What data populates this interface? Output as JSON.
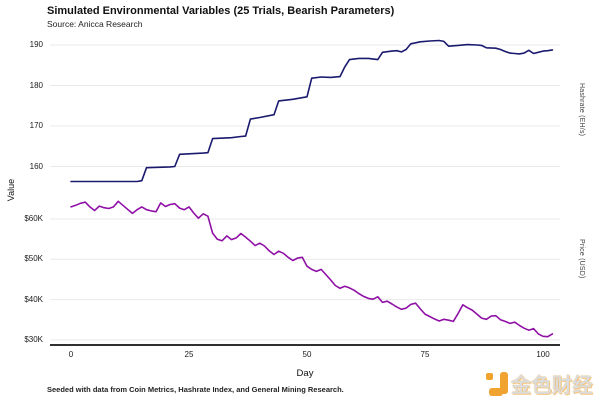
{
  "title": "Simulated Environmental Variables (25 Trials, Bearish Parameters)",
  "subtitle": "Source: Anicca Research",
  "caption": "Seeded with data from Coin Metrics, Hashrate Index, and General Mining Research.",
  "watermark": {
    "text": "金色财经",
    "accent_color": "#f0a32f"
  },
  "chart_data": {
    "type": "line",
    "title": "Simulated Environmental Variables (25 Trials, Bearish Parameters)",
    "xlabel": "Day",
    "ylabel": "Value",
    "grid": true,
    "legend_position": "right-axis-labels",
    "x_range": [
      0,
      102
    ],
    "x_ticks": [
      {
        "label": "0",
        "value": 0
      },
      {
        "label": "25",
        "value": 25
      },
      {
        "label": "50",
        "value": 50
      },
      {
        "label": "75",
        "value": 75
      },
      {
        "label": "100",
        "value": 100
      }
    ],
    "left_ticks": [
      {
        "label": "190",
        "axis": "hashrate",
        "value": 190
      },
      {
        "label": "180",
        "axis": "hashrate",
        "value": 180
      },
      {
        "label": "170",
        "axis": "hashrate",
        "value": 170
      },
      {
        "label": "160",
        "axis": "hashrate",
        "value": 160
      },
      {
        "label": "$60K",
        "axis": "price",
        "value": 60
      },
      {
        "label": "$50K",
        "axis": "price",
        "value": 50
      },
      {
        "label": "$40K",
        "axis": "price",
        "value": 40
      },
      {
        "label": "$30K",
        "axis": "price",
        "value": 30
      }
    ],
    "series": [
      {
        "key": "hashrate",
        "name": "Hashrate (EH/s)",
        "color": "#1a1a6e",
        "ylim": [
          156,
          191
        ],
        "points": [
          [
            0,
            156.3
          ],
          [
            14,
            156.3
          ],
          [
            15,
            156.5
          ],
          [
            16,
            159.7
          ],
          [
            21,
            159.9
          ],
          [
            22,
            160.0
          ],
          [
            23,
            163.0
          ],
          [
            28,
            163.3
          ],
          [
            29,
            163.4
          ],
          [
            30,
            166.9
          ],
          [
            34,
            167.1
          ],
          [
            36,
            167.4
          ],
          [
            37,
            167.5
          ],
          [
            38,
            171.7
          ],
          [
            40,
            172.1
          ],
          [
            43,
            172.8
          ],
          [
            44,
            176.2
          ],
          [
            47,
            176.6
          ],
          [
            50,
            177.2
          ],
          [
            51,
            181.8
          ],
          [
            53,
            182.1
          ],
          [
            55,
            182.0
          ],
          [
            57,
            182.2
          ],
          [
            58,
            184.6
          ],
          [
            59,
            186.4
          ],
          [
            61,
            186.7
          ],
          [
            63,
            186.7
          ],
          [
            65,
            186.4
          ],
          [
            66,
            188.2
          ],
          [
            68,
            188.5
          ],
          [
            69,
            188.6
          ],
          [
            70,
            188.3
          ],
          [
            71,
            188.9
          ],
          [
            72,
            190.3
          ],
          [
            74,
            190.8
          ],
          [
            76,
            191.0
          ],
          [
            78,
            191.1
          ],
          [
            79,
            190.9
          ],
          [
            80,
            189.7
          ],
          [
            82,
            189.9
          ],
          [
            84,
            190.1
          ],
          [
            86,
            190.0
          ],
          [
            87,
            189.9
          ],
          [
            88,
            189.3
          ],
          [
            90,
            189.2
          ],
          [
            91,
            188.9
          ],
          [
            92,
            188.4
          ],
          [
            93,
            188.0
          ],
          [
            94,
            187.9
          ],
          [
            95,
            187.8
          ],
          [
            96,
            188.0
          ],
          [
            97,
            188.7
          ],
          [
            98,
            187.9
          ],
          [
            99,
            188.2
          ],
          [
            100,
            188.5
          ],
          [
            101,
            188.6
          ],
          [
            102,
            188.8
          ]
        ]
      },
      {
        "key": "price",
        "name": "Price (USD)",
        "color": "#8f10a5",
        "unit": "thousand USD",
        "ylim": [
          30,
          65
        ],
        "points": [
          [
            0,
            63.0
          ],
          [
            1,
            63.4
          ],
          [
            2,
            63.9
          ],
          [
            3,
            64.2
          ],
          [
            4,
            63.0
          ],
          [
            5,
            62.1
          ],
          [
            6,
            63.2
          ],
          [
            7,
            62.8
          ],
          [
            8,
            62.6
          ],
          [
            9,
            63.0
          ],
          [
            10,
            64.4
          ],
          [
            11,
            63.4
          ],
          [
            12,
            62.4
          ],
          [
            13,
            61.4
          ],
          [
            14,
            62.3
          ],
          [
            15,
            63.0
          ],
          [
            16,
            62.3
          ],
          [
            17,
            62.0
          ],
          [
            18,
            61.8
          ],
          [
            19,
            64.0
          ],
          [
            20,
            63.1
          ],
          [
            21,
            63.6
          ],
          [
            22,
            63.8
          ],
          [
            23,
            62.7
          ],
          [
            24,
            62.3
          ],
          [
            25,
            63.0
          ],
          [
            26,
            61.5
          ],
          [
            27,
            60.2
          ],
          [
            28,
            61.3
          ],
          [
            29,
            60.7
          ],
          [
            30,
            56.5
          ],
          [
            31,
            55.0
          ],
          [
            32,
            54.6
          ],
          [
            33,
            55.8
          ],
          [
            34,
            54.9
          ],
          [
            35,
            55.3
          ],
          [
            36,
            56.4
          ],
          [
            37,
            55.5
          ],
          [
            38,
            54.5
          ],
          [
            39,
            53.4
          ],
          [
            40,
            54.0
          ],
          [
            41,
            53.3
          ],
          [
            42,
            52.1
          ],
          [
            43,
            51.2
          ],
          [
            44,
            52.0
          ],
          [
            45,
            51.5
          ],
          [
            46,
            50.5
          ],
          [
            47,
            49.7
          ],
          [
            48,
            50.3
          ],
          [
            49,
            50.5
          ],
          [
            50,
            48.3
          ],
          [
            51,
            47.5
          ],
          [
            52,
            47.0
          ],
          [
            53,
            47.5
          ],
          [
            54,
            46.2
          ],
          [
            55,
            44.9
          ],
          [
            56,
            43.5
          ],
          [
            57,
            42.8
          ],
          [
            58,
            43.3
          ],
          [
            59,
            42.9
          ],
          [
            60,
            42.3
          ],
          [
            61,
            41.5
          ],
          [
            62,
            40.8
          ],
          [
            63,
            40.3
          ],
          [
            64,
            40.1
          ],
          [
            65,
            40.7
          ],
          [
            66,
            39.3
          ],
          [
            67,
            39.6
          ],
          [
            68,
            38.9
          ],
          [
            69,
            38.2
          ],
          [
            70,
            37.6
          ],
          [
            71,
            37.9
          ],
          [
            72,
            38.8
          ],
          [
            73,
            39.1
          ],
          [
            74,
            37.7
          ],
          [
            75,
            36.4
          ],
          [
            76,
            35.8
          ],
          [
            77,
            35.2
          ],
          [
            78,
            34.7
          ],
          [
            79,
            35.1
          ],
          [
            80,
            34.9
          ],
          [
            81,
            34.6
          ],
          [
            82,
            36.5
          ],
          [
            83,
            38.7
          ],
          [
            84,
            38.0
          ],
          [
            85,
            37.4
          ],
          [
            86,
            36.4
          ],
          [
            87,
            35.4
          ],
          [
            88,
            35.1
          ],
          [
            89,
            35.9
          ],
          [
            90,
            36.0
          ],
          [
            91,
            35.0
          ],
          [
            92,
            34.6
          ],
          [
            93,
            34.1
          ],
          [
            94,
            34.4
          ],
          [
            95,
            33.6
          ],
          [
            96,
            32.9
          ],
          [
            97,
            32.4
          ],
          [
            98,
            32.8
          ],
          [
            99,
            31.5
          ],
          [
            100,
            30.9
          ],
          [
            101,
            30.8
          ],
          [
            102,
            31.5
          ]
        ]
      }
    ]
  }
}
